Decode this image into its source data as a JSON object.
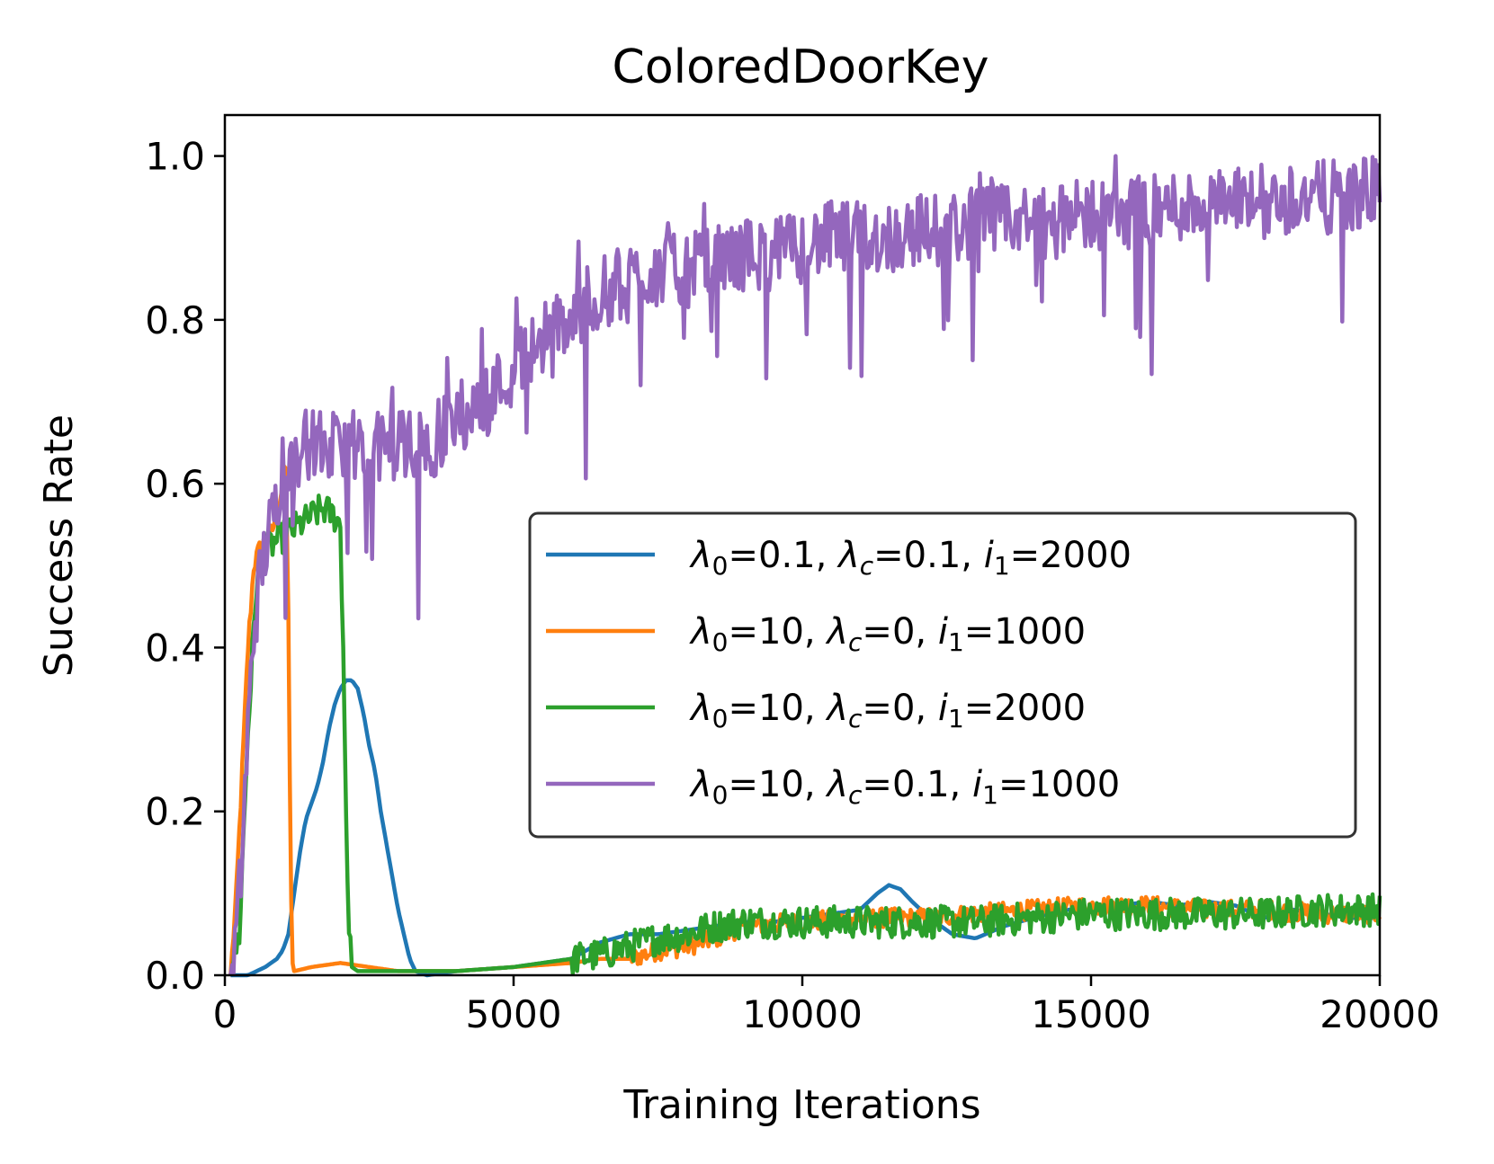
{
  "chart_data": {
    "type": "line",
    "title": "ColoredDoorKey",
    "xlabel": "Training Iterations",
    "ylabel": "Success Rate",
    "xlim": [
      0,
      20000
    ],
    "ylim": [
      0,
      1.05
    ],
    "xticks": [
      0,
      5000,
      10000,
      15000,
      20000
    ],
    "xtick_labels": [
      "0",
      "5000",
      "10000",
      "15000",
      "20000"
    ],
    "yticks": [
      0,
      0.2,
      0.4,
      0.6,
      0.8,
      1.0
    ],
    "ytick_labels": [
      "0.0",
      "0.2",
      "0.4",
      "0.6",
      "0.8",
      "1.0"
    ],
    "grid": false,
    "legend_position": "center-right",
    "series": [
      {
        "name": "λ0=0.1, λc=0.1, i1=2000",
        "legend": {
          "l0": "0.1",
          "lc": "0.1",
          "i1": "2000"
        },
        "color": "#1f77b4",
        "x": [
          100,
          400,
          700,
          900,
          1000,
          1100,
          1200,
          1300,
          1400,
          1500,
          1600,
          1700,
          1800,
          1900,
          2000,
          2100,
          2200,
          2300,
          2400,
          2500,
          2600,
          2700,
          2800,
          2900,
          3000,
          3100,
          3200,
          3300,
          3500,
          4000,
          5000,
          6000,
          6500,
          7000,
          7500,
          8000,
          8500,
          9000,
          9500,
          10000,
          10500,
          11000,
          11300,
          11500,
          11700,
          11900,
          12200,
          12600,
          13000,
          13500,
          14000,
          14500,
          15000,
          15500,
          16000,
          16500,
          17000,
          17500,
          18000,
          18500,
          19000,
          19500,
          20000
        ],
        "y": [
          0.0,
          0.0,
          0.01,
          0.02,
          0.03,
          0.05,
          0.1,
          0.15,
          0.19,
          0.21,
          0.23,
          0.26,
          0.3,
          0.33,
          0.35,
          0.36,
          0.36,
          0.35,
          0.32,
          0.28,
          0.25,
          0.2,
          0.16,
          0.12,
          0.08,
          0.05,
          0.02,
          0.005,
          0.0,
          0.005,
          0.01,
          0.02,
          0.04,
          0.05,
          0.05,
          0.055,
          0.06,
          0.065,
          0.065,
          0.07,
          0.075,
          0.08,
          0.1,
          0.11,
          0.105,
          0.09,
          0.07,
          0.05,
          0.045,
          0.06,
          0.07,
          0.08,
          0.08,
          0.085,
          0.09,
          0.085,
          0.09,
          0.085,
          0.07,
          0.08,
          0.075,
          0.07,
          0.07
        ]
      },
      {
        "name": "λ0=10, λc=0, i1=1000",
        "legend": {
          "l0": "10",
          "lc": "0",
          "i1": "1000"
        },
        "color": "#ff7f0e",
        "x": [
          100,
          200,
          300,
          400,
          500,
          600,
          700,
          800,
          900,
          1000,
          1050,
          1100,
          1130,
          1160,
          1200,
          1500,
          2000,
          2500,
          3000,
          4000,
          5000,
          6000,
          6500,
          7000,
          7500,
          8000,
          8500,
          9000,
          10000,
          11000,
          12000,
          13000,
          14000,
          15000,
          16000,
          17000,
          18000,
          19000,
          20000
        ],
        "y": [
          0.0,
          0.1,
          0.25,
          0.4,
          0.5,
          0.52,
          0.53,
          0.54,
          0.56,
          0.6,
          0.62,
          0.45,
          0.2,
          0.02,
          0.005,
          0.01,
          0.015,
          0.01,
          0.005,
          0.005,
          0.01,
          0.015,
          0.02,
          0.02,
          0.03,
          0.035,
          0.045,
          0.06,
          0.065,
          0.07,
          0.07,
          0.075,
          0.08,
          0.085,
          0.085,
          0.08,
          0.08,
          0.075,
          0.075
        ]
      },
      {
        "name": "λ0=10, λc=0, i1=2000",
        "legend": {
          "l0": "10",
          "lc": "0",
          "i1": "2000"
        },
        "color": "#2ca02c",
        "x": [
          100,
          250,
          400,
          550,
          700,
          900,
          1100,
          1300,
          1500,
          1700,
          1900,
          2000,
          2050,
          2100,
          2150,
          2200,
          2300,
          2500,
          3000,
          4000,
          5000,
          6000,
          6500,
          7000,
          7500,
          8000,
          8500,
          9000,
          10000,
          11000,
          12000,
          13000,
          14000,
          15000,
          16000,
          17000,
          18000,
          19000,
          20000
        ],
        "y": [
          0.0,
          0.05,
          0.3,
          0.48,
          0.52,
          0.53,
          0.54,
          0.55,
          0.56,
          0.57,
          0.56,
          0.55,
          0.4,
          0.2,
          0.05,
          0.01,
          0.005,
          0.005,
          0.005,
          0.005,
          0.01,
          0.02,
          0.025,
          0.035,
          0.045,
          0.05,
          0.06,
          0.065,
          0.065,
          0.065,
          0.065,
          0.065,
          0.07,
          0.075,
          0.075,
          0.075,
          0.075,
          0.08,
          0.08
        ]
      },
      {
        "name": "λ0=10, λc=0.1, i1=1000",
        "legend": {
          "l0": "10",
          "lc": "0.1",
          "i1": "1000"
        },
        "color": "#9467bd",
        "x": [
          100,
          200,
          300,
          400,
          500,
          600,
          700,
          800,
          900,
          1000,
          1500,
          2000,
          2500,
          3000,
          3500,
          4000,
          4500,
          5000,
          5500,
          6000,
          6500,
          7000,
          7500,
          8000,
          8500,
          9000,
          9500,
          10000,
          10500,
          11000,
          11500,
          12000,
          12500,
          13000,
          13500,
          14000,
          14500,
          15000,
          15500,
          16000,
          16500,
          17000,
          17500,
          18000,
          18500,
          19000,
          19500,
          20000
        ],
        "y": [
          0.0,
          0.05,
          0.15,
          0.3,
          0.42,
          0.48,
          0.52,
          0.55,
          0.58,
          0.63,
          0.65,
          0.64,
          0.64,
          0.65,
          0.64,
          0.68,
          0.7,
          0.74,
          0.78,
          0.8,
          0.83,
          0.85,
          0.86,
          0.86,
          0.87,
          0.88,
          0.88,
          0.89,
          0.9,
          0.9,
          0.9,
          0.91,
          0.91,
          0.92,
          0.92,
          0.92,
          0.92,
          0.93,
          0.93,
          0.93,
          0.94,
          0.94,
          0.94,
          0.94,
          0.95,
          0.95,
          0.95,
          0.96
        ]
      }
    ]
  }
}
